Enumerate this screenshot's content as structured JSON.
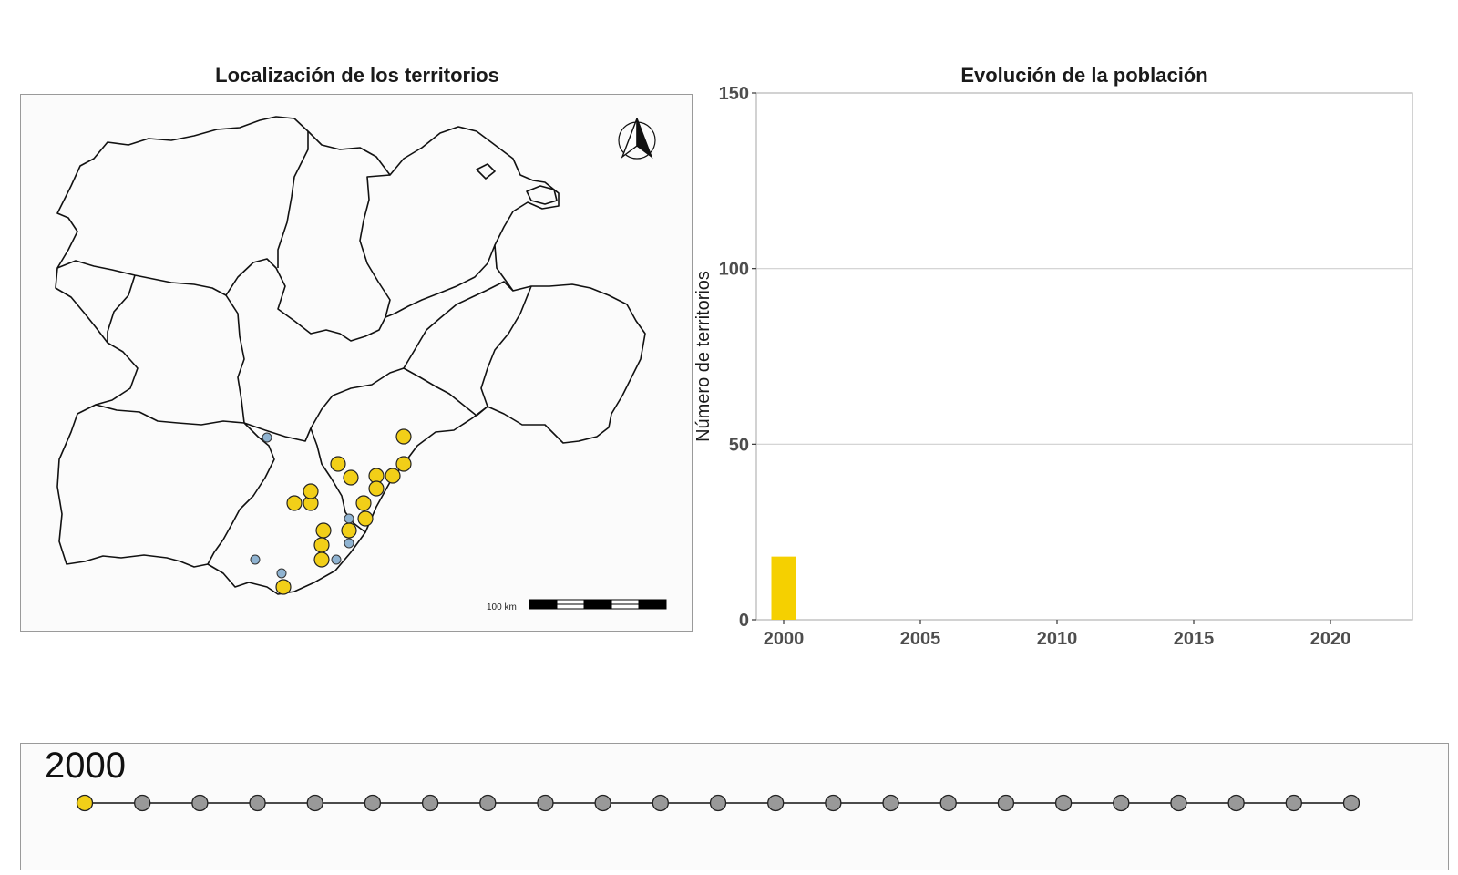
{
  "map": {
    "title": "Localización de los territorios",
    "scale_label": "100 km",
    "north_arrow": "north-arrow-icon",
    "colors": {
      "occupied": "#f2cf18",
      "historic": "#8fb3d1",
      "outline": "#111111",
      "background": "#fbfbfb"
    }
  },
  "chart": {
    "title": "Evolución de la población"
  },
  "chart_data": {
    "type": "bar",
    "title": "Evolución de la población",
    "xlabel": "",
    "ylabel": "Número de territorios",
    "xlim": [
      1999,
      2023
    ],
    "ylim": [
      0,
      150
    ],
    "x_ticks": [
      2000,
      2005,
      2010,
      2015,
      2020
    ],
    "y_ticks": [
      0,
      50,
      100,
      150
    ],
    "x": [
      2000
    ],
    "values": [
      18
    ],
    "bar_color": "#f5d000",
    "grid": "horizontal"
  },
  "timeline": {
    "current_year": "2000",
    "current_index": 0,
    "steps": 23,
    "active_color": "#f2cf18",
    "inactive_color": "#999999"
  }
}
